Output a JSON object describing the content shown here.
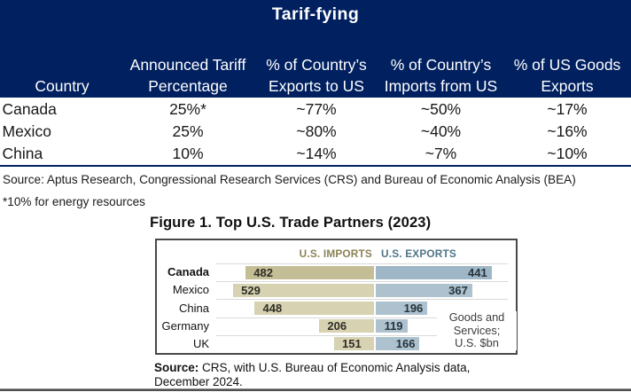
{
  "title": "Tarif-fying",
  "table": {
    "columns": [
      {
        "line1": "",
        "line2": "Country"
      },
      {
        "line1": "Announced Tariff",
        "line2": "Percentage"
      },
      {
        "line1": "% of Country’s",
        "line2": "Exports to US"
      },
      {
        "line1": "% of Country’s",
        "line2": "Imports from US"
      },
      {
        "line1": "% of US Goods",
        "line2": "Exports"
      }
    ],
    "rows": [
      {
        "country": "Canada",
        "values": [
          "25%*",
          "~77%",
          "~50%",
          "~17%"
        ]
      },
      {
        "country": "Mexico",
        "values": [
          "25%",
          "~80%",
          "~40%",
          "~16%"
        ]
      },
      {
        "country": "China",
        "values": [
          "10%",
          "~14%",
          "~7%",
          "~10%"
        ]
      }
    ],
    "source": "Source: Aptus Research, Congressional Research Services (CRS) and Bureau of Economic Analysis (BEA)",
    "footnote": "*10% for energy resources"
  },
  "figure": {
    "title": "Figure 1. Top U.S. Trade Partners (2023)",
    "source_prefix": "Source:",
    "source_rest": " CRS, with U.S. Bureau of Economic Analysis data,",
    "source_line2": "December 2024."
  },
  "chart_data": {
    "type": "bar",
    "orientation": "horizontal-diverging",
    "title": "Figure 1. Top U.S. Trade Partners (2023)",
    "categories": [
      "Canada",
      "Mexico",
      "China",
      "Germany",
      "UK"
    ],
    "series": [
      {
        "name": "U.S. IMPORTS",
        "side": "left",
        "values": [
          482,
          529,
          448,
          206,
          151
        ]
      },
      {
        "name": "U.S. EXPORTS",
        "side": "right",
        "values": [
          441,
          367,
          196,
          119,
          166
        ]
      }
    ],
    "emphasized_category": "Canada",
    "unit_note": [
      "Goods and",
      "Services;",
      "U.S. $bn"
    ],
    "legend_position": "top",
    "value_labels": "inside-end",
    "axis_hidden": true
  },
  "colors": {
    "banner": "#002060",
    "imports_bar_emphasis": "#c4be96",
    "imports_bar": "#d6d2b2",
    "exports_bar_emphasis": "#9eb6c5",
    "exports_bar": "#adc2ce",
    "imports_legend_text": "#8a8355",
    "exports_legend_text": "#4e7487",
    "separator": "#d9d9d9",
    "box_border": "#484848"
  }
}
